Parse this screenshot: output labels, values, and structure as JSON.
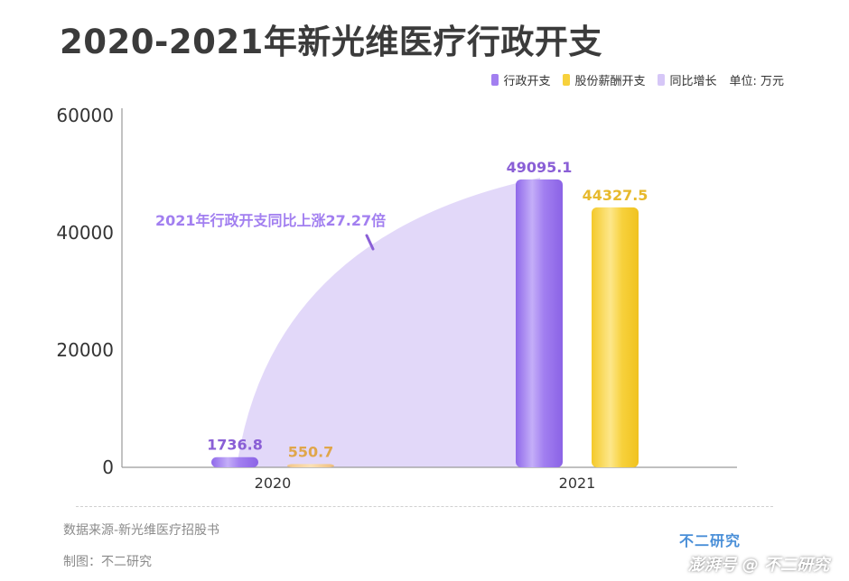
{
  "title": "2020-2021年新光维医疗行政开支",
  "legend": {
    "items": [
      {
        "label": "行政开支",
        "color": "#a27ff0"
      },
      {
        "label": "股份薪酬开支",
        "color": "#f7d13c"
      },
      {
        "label": "同比增长",
        "color": "#d6c7f7"
      }
    ],
    "unit": "单位: 万元"
  },
  "chart_data": {
    "type": "bar",
    "categories": [
      "2020",
      "2021"
    ],
    "series": [
      {
        "name": "行政开支",
        "values": [
          1736.8,
          49095.1
        ],
        "labels": [
          "1736.8",
          "49095.1"
        ],
        "color": "#a27ff0",
        "label_color": "#8a5fd6"
      },
      {
        "name": "股份薪酬开支",
        "values": [
          550.7,
          44327.5
        ],
        "labels": [
          "550.7",
          "44327.5"
        ],
        "color": "#f7d13c",
        "label_color": "#e3b52a"
      }
    ],
    "yticks": [
      "0",
      "20000",
      "40000",
      "60000"
    ],
    "ylim": [
      0,
      60000
    ],
    "annotation": "2021年行政开支同比上涨27.27倍",
    "growth_area_color": "#d6c7f7"
  },
  "footer": {
    "source": "数据来源-新光维医疗招股书",
    "made_by": "制图：不二研究",
    "brand": "不二研究",
    "credit": "澎湃号  @ 不二研究"
  }
}
